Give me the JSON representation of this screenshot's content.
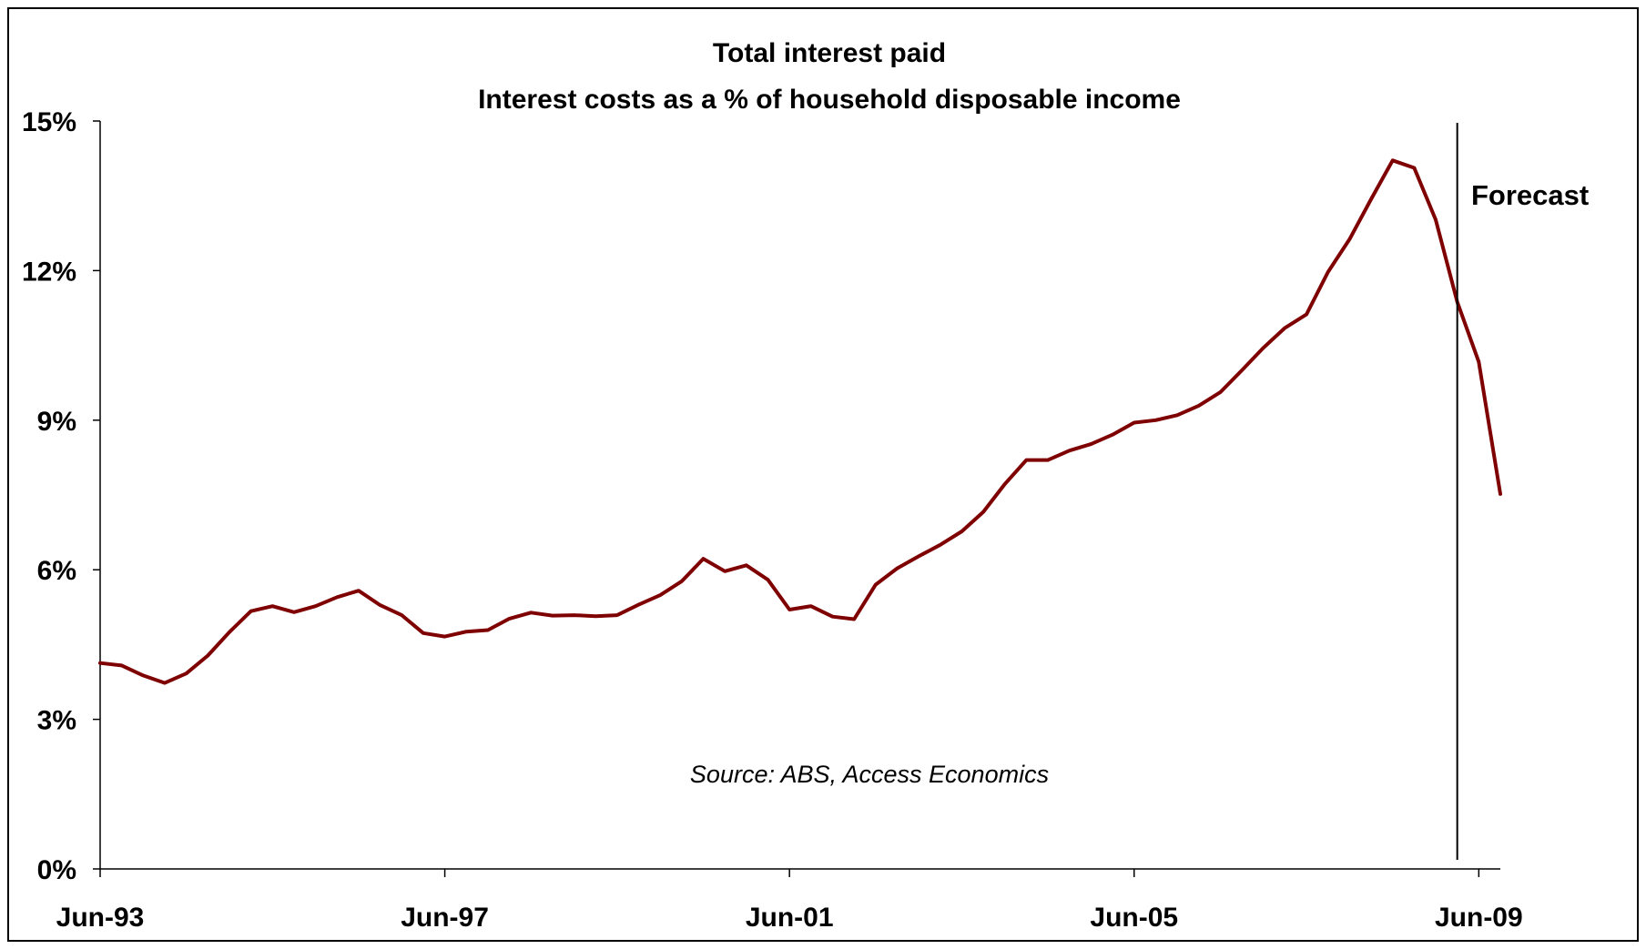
{
  "chart_data": {
    "type": "line",
    "title": "Total interest paid",
    "subtitle": "Interest costs as a % of household disposable income",
    "xlabel": "",
    "ylabel": "",
    "ylim": [
      0,
      15
    ],
    "yticks": [
      "0%",
      "3%",
      "6%",
      "9%",
      "12%",
      "15%"
    ],
    "xticks": [
      "Jun-93",
      "Jun-97",
      "Jun-01",
      "Jun-05",
      "Jun-09"
    ],
    "grid": false,
    "legend": "none",
    "line_color": "#7f0000",
    "forecast_marker": {
      "label": "Forecast",
      "x": "Mar-09"
    },
    "source": "Source: ABS, Access Economics",
    "series": [
      {
        "x": [
          "Jun-93",
          "Sep-93",
          "Dec-93",
          "Mar-94",
          "Jun-94",
          "Sep-94",
          "Dec-94",
          "Mar-95",
          "Jun-95",
          "Sep-95",
          "Dec-95",
          "Mar-96",
          "Jun-96",
          "Sep-96",
          "Dec-96",
          "Mar-97",
          "Jun-97",
          "Sep-97",
          "Dec-97",
          "Mar-98",
          "Jun-98",
          "Sep-98",
          "Dec-98",
          "Mar-99",
          "Jun-99",
          "Sep-99",
          "Dec-99",
          "Mar-00",
          "Jun-00",
          "Sep-00",
          "Dec-00",
          "Mar-01",
          "Jun-01",
          "Sep-01",
          "Dec-01",
          "Mar-02",
          "Jun-02",
          "Sep-02",
          "Dec-02",
          "Mar-03",
          "Jun-03",
          "Sep-03",
          "Dec-03",
          "Mar-04",
          "Jun-04",
          "Sep-04",
          "Dec-04",
          "Mar-05",
          "Jun-05",
          "Sep-05",
          "Dec-05",
          "Mar-06",
          "Jun-06",
          "Sep-06",
          "Dec-06",
          "Mar-07",
          "Jun-07",
          "Sep-07",
          "Dec-07",
          "Mar-08",
          "Jun-08",
          "Sep-08",
          "Dec-08",
          "Mar-09",
          "Jun-09",
          "Sep-09"
        ],
        "values": [
          4.13,
          4.08,
          3.88,
          3.73,
          3.92,
          4.28,
          4.75,
          5.17,
          5.27,
          5.15,
          5.27,
          5.45,
          5.58,
          5.29,
          5.09,
          4.73,
          4.66,
          4.76,
          4.79,
          5.02,
          5.14,
          5.08,
          5.09,
          5.07,
          5.09,
          5.3,
          5.49,
          5.77,
          6.22,
          5.97,
          6.09,
          5.8,
          5.2,
          5.27,
          5.06,
          5.01,
          5.7,
          6.03,
          6.27,
          6.5,
          6.77,
          7.16,
          7.72,
          8.2,
          8.2,
          8.39,
          8.52,
          8.71,
          8.95,
          9.0,
          9.1,
          9.29,
          9.56,
          10.0,
          10.45,
          10.85,
          11.12,
          11.97,
          12.63,
          13.43,
          14.21,
          14.06,
          13.02,
          11.37,
          10.17,
          7.52
        ]
      }
    ]
  }
}
